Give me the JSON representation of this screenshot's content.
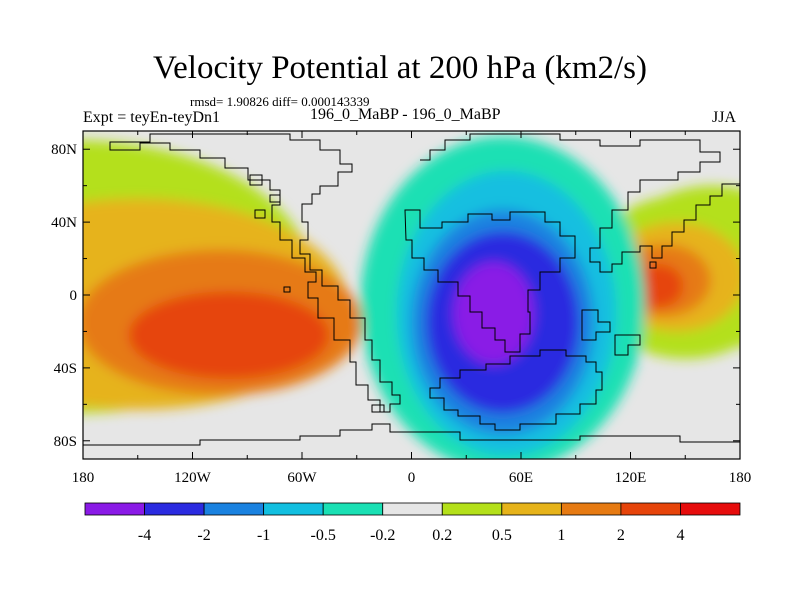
{
  "chart_data": {
    "type": "heatmap",
    "title": "Velocity Potential at 200 hPa (km2/s)",
    "subtitle": "rmsd= 1.90826 diff= 0.000143339",
    "left_label": "Expt = teyEn-teyDn1",
    "center_label": "196_0_MaBP - 196_0_MaBP",
    "right_label": "JJA",
    "x_ticks": [
      "180",
      "120W",
      "60W",
      "0",
      "60E",
      "120E",
      "180"
    ],
    "x_tick_values": [
      -180,
      -120,
      -60,
      0,
      60,
      120,
      180
    ],
    "y_ticks": [
      "80N",
      "40N",
      "0",
      "40S",
      "80S"
    ],
    "y_tick_values": [
      80,
      40,
      0,
      -40,
      -80
    ],
    "xlim": [
      -180,
      180
    ],
    "ylim": [
      -90,
      90
    ],
    "colorbar": {
      "labels": [
        "-4",
        "-2",
        "-1",
        "-0.5",
        "-0.2",
        "0.2",
        "0.5",
        "1",
        "2",
        "4"
      ],
      "colors": [
        "#8a1ae6",
        "#2b2be0",
        "#1a82e0",
        "#12bfe0",
        "#1ae0b4",
        "#e6e6e6",
        "#b4e01a",
        "#e6b31a",
        "#e67a12",
        "#e6440a",
        "#e60c0c"
      ]
    },
    "fields": [
      {
        "level": 0.2,
        "color": "#b4e01a",
        "blobs": [
          [
            -185,
            10,
            130,
            75
          ],
          [
            165,
            15,
            55,
            45
          ]
        ]
      },
      {
        "level": 0.5,
        "color": "#e6b31a",
        "blobs": [
          [
            -150,
            -5,
            115,
            58
          ]
        ]
      },
      {
        "level": 1,
        "color": "#e67a12",
        "blobs": [
          [
            -105,
            -15,
            78,
            40
          ]
        ]
      },
      {
        "level": 2,
        "color": "#e6440a",
        "blobs": [
          [
            -100,
            -22,
            55,
            24
          ]
        ]
      },
      {
        "level": 0.2,
        "color": "#b4e01a",
        "blobs": [
          [
            150,
            10,
            55,
            45
          ]
        ]
      },
      {
        "level": 0.5,
        "color": "#e6b31a",
        "blobs": [
          [
            145,
            10,
            38,
            30
          ]
        ]
      },
      {
        "level": 1,
        "color": "#e67a12",
        "blobs": [
          [
            138,
            8,
            26,
            20
          ]
        ]
      },
      {
        "level": 2,
        "color": "#e6440a",
        "blobs": [
          [
            135,
            5,
            14,
            12
          ]
        ]
      },
      {
        "level": -0.2,
        "color": "#1ae0b4",
        "blobs": [
          [
            50,
            -5,
            78,
            92
          ]
        ]
      },
      {
        "level": -0.5,
        "color": "#12bfe0",
        "blobs": [
          [
            52,
            -10,
            60,
            78
          ]
        ]
      },
      {
        "level": -1,
        "color": "#1a82e0",
        "blobs": [
          [
            50,
            -15,
            50,
            62
          ]
        ]
      },
      {
        "level": -2,
        "color": "#2b2be0",
        "blobs": [
          [
            50,
            -15,
            42,
            50
          ]
        ]
      },
      {
        "level": -4,
        "color": "#8a1ae6",
        "blobs": [
          [
            45,
            -10,
            22,
            28
          ]
        ]
      }
    ]
  }
}
